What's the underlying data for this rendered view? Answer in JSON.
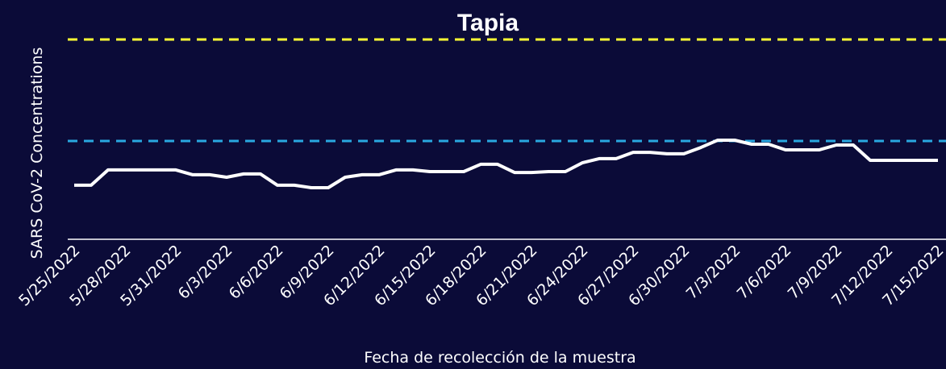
{
  "chart_data": {
    "type": "line",
    "title": "Tapia",
    "ylabel": "SARS CoV-2 Concentrations",
    "xlabel": "Fecha de recolección de la muestra",
    "categories": [
      "5/25/2022",
      null,
      null,
      "5/28/2022",
      null,
      null,
      "5/31/2022",
      null,
      null,
      "6/3/2022",
      null,
      null,
      "6/6/2022",
      null,
      null,
      "6/9/2022",
      null,
      null,
      "6/12/2022",
      null,
      null,
      "6/15/2022",
      null,
      null,
      "6/18/2022",
      null,
      null,
      "6/21/2022",
      null,
      null,
      "6/24/2022",
      null,
      null,
      "6/27/2022",
      null,
      null,
      "6/30/2022",
      null,
      null,
      "7/3/2022",
      null,
      null,
      "7/6/2022",
      null,
      null,
      "7/9/2022",
      null,
      null,
      "7/12/2022",
      null,
      null,
      "7/15/2022"
    ],
    "series": [
      {
        "color": "#ffffff",
        "values": [
          25.8,
          25.8,
          33.1,
          33.1,
          33.1,
          33.1,
          33.1,
          30.8,
          30.8,
          29.6,
          31.2,
          31.2,
          25.8,
          25.8,
          24.6,
          24.6,
          29.6,
          30.8,
          30.8,
          33.1,
          33.1,
          32.3,
          32.3,
          32.3,
          35.8,
          35.8,
          31.9,
          31.9,
          32.3,
          32.3,
          36.5,
          38.5,
          38.5,
          41.5,
          41.5,
          40.8,
          40.8,
          43.8,
          47.3,
          47.3,
          45.4,
          45.4,
          42.7,
          42.7,
          42.7,
          45.0,
          45.0,
          37.7,
          37.7,
          37.7,
          37.7,
          37.7
        ]
      }
    ],
    "thresholds": [
      {
        "value": 95.4,
        "color": "#ffff33"
      },
      {
        "value": 46.9,
        "color": "#29a8e0"
      }
    ],
    "ylim": [
      0,
      100
    ]
  }
}
